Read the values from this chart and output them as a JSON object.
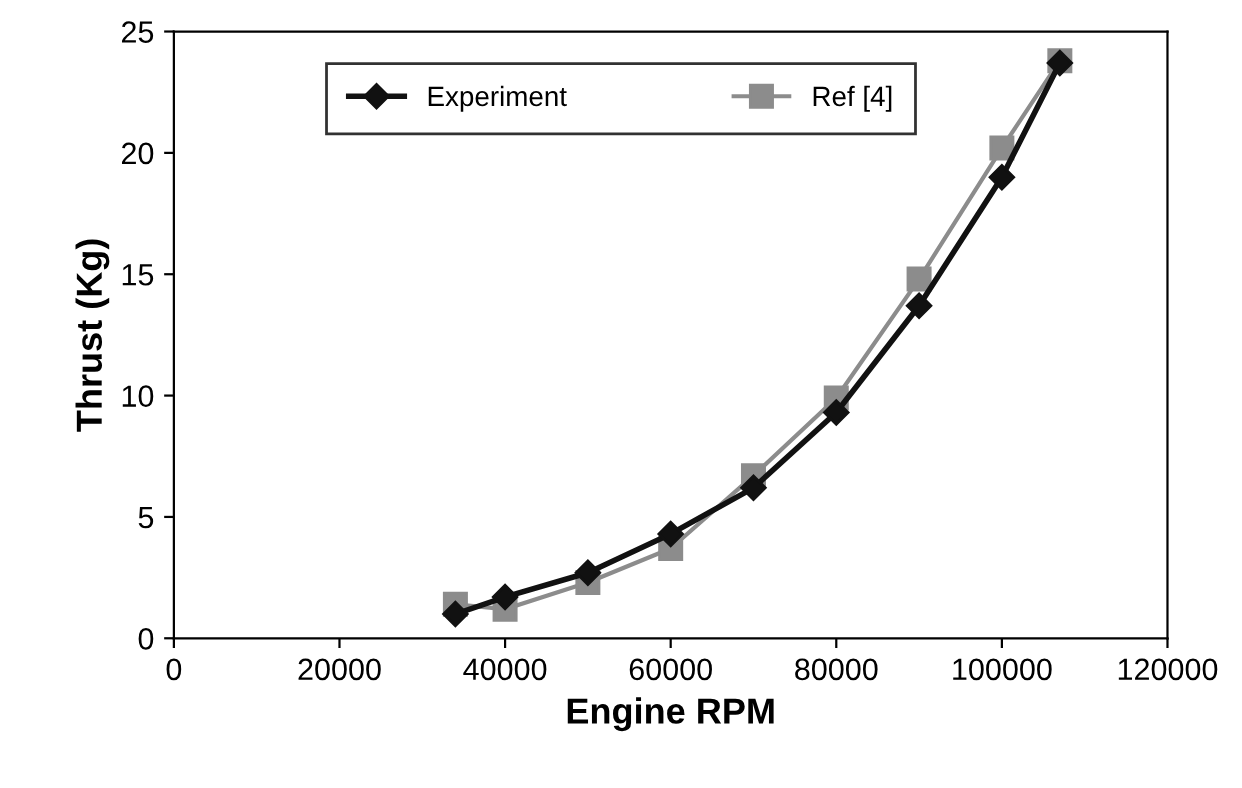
{
  "chart_data": {
    "type": "line",
    "xlabel": "Engine RPM",
    "ylabel": "Thrust (Kg)",
    "x": [
      34000,
      40000,
      50000,
      60000,
      70000,
      80000,
      90000,
      100000,
      107000
    ],
    "series": [
      {
        "name": "Experiment",
        "color": "#111111",
        "marker": "diamond",
        "values": [
          1.0,
          1.7,
          2.7,
          4.3,
          6.2,
          9.3,
          13.7,
          19.0,
          23.7
        ]
      },
      {
        "name": "Ref [4]",
        "color": "#8c8c8c",
        "marker": "square",
        "values": [
          1.4,
          1.2,
          2.3,
          3.7,
          6.7,
          9.9,
          14.8,
          20.2,
          23.8
        ]
      }
    ],
    "xlim": [
      0,
      120000
    ],
    "xticks": [
      0,
      20000,
      40000,
      60000,
      80000,
      100000,
      120000
    ],
    "ylim": [
      0,
      25
    ],
    "yticks": [
      0,
      5,
      10,
      15,
      20,
      25
    ],
    "grid": false,
    "legend": "top",
    "line_style": "solid"
  }
}
